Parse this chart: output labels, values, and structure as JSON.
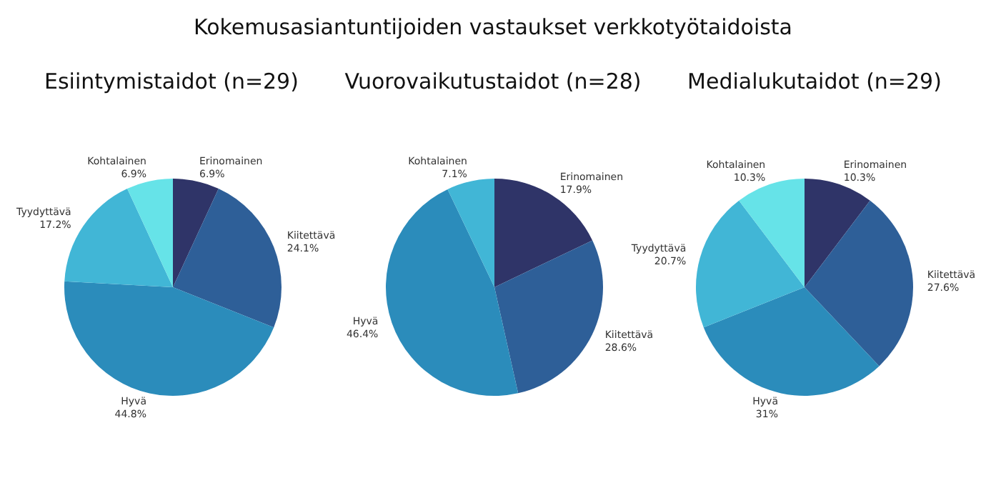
{
  "chart_data": [
    {
      "type": "pie",
      "title": "Esiintymistaidot (n=29)",
      "annotations": [
        "Kokemusasiantuntijoiden vastaukset verkkotyötaidoista"
      ],
      "categories": [
        "Erinomainen",
        "Kiitettävä",
        "Hyvä",
        "Tyydyttävä",
        "Kohtalainen"
      ],
      "values": [
        6.9,
        24.1,
        44.8,
        17.2,
        6.9
      ],
      "value_labels": [
        "6.9%",
        "24.1%",
        "44.8%",
        "17.2%",
        "6.9%"
      ],
      "colors": [
        "#2f3468",
        "#2e5f98",
        "#2b8cbb",
        "#41b6d6",
        "#66e3e8"
      ],
      "legend": false
    },
    {
      "type": "pie",
      "title": "Vuorovaikutustaidot (n=28)",
      "categories": [
        "Erinomainen",
        "Kiitettävä",
        "Hyvä",
        "Kohtalainen"
      ],
      "values": [
        17.9,
        28.6,
        46.4,
        7.1
      ],
      "value_labels": [
        "17.9%",
        "28.6%",
        "46.4%",
        "7.1%"
      ],
      "colors": [
        "#2f3468",
        "#2e5f98",
        "#2b8cbb",
        "#41b6d6"
      ],
      "legend": false
    },
    {
      "type": "pie",
      "title": "Medialukutaidot (n=29)",
      "categories": [
        "Erinomainen",
        "Kiitettävä",
        "Hyvä",
        "Tyydyttävä",
        "Kohtalainen"
      ],
      "values": [
        10.3,
        27.6,
        31,
        20.7,
        10.3
      ],
      "value_labels": [
        "10.3%",
        "27.6%",
        "31%",
        "20.7%",
        "10.3%"
      ],
      "colors": [
        "#2f3468",
        "#2e5f98",
        "#2b8cbb",
        "#41b6d6",
        "#66e3e8"
      ],
      "legend": false
    }
  ]
}
